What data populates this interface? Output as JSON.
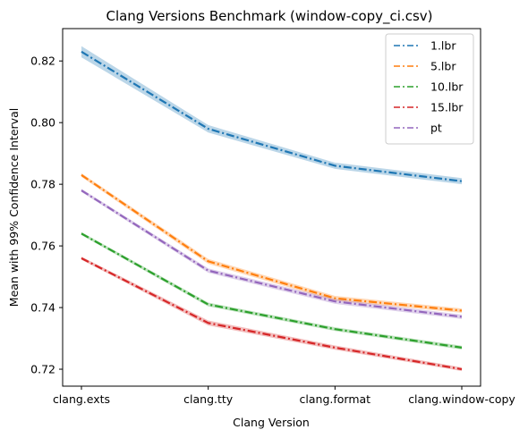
{
  "chart_data": {
    "type": "line",
    "title": "Clang Versions Benchmark (window-copy_ci.csv)",
    "xlabel": "Clang Version",
    "ylabel": "Mean with 99% Confidence Interval",
    "categories": [
      "clang.exts",
      "clang.tty",
      "clang.format",
      "clang.window-copy"
    ],
    "ylim": [
      0.7145,
      0.8305
    ],
    "yticks": [
      0.72,
      0.74,
      0.76,
      0.78,
      0.8,
      0.82
    ],
    "ytick_labels": [
      "0.72",
      "0.74",
      "0.76",
      "0.78",
      "0.80",
      "0.82"
    ],
    "grid": false,
    "legend_position": "top-right",
    "line_style": "dash-dot",
    "series": [
      {
        "name": "1.lbr",
        "color": "#1f77b4",
        "values": [
          0.823,
          0.798,
          0.786,
          0.781
        ],
        "ci": [
          0.0018,
          0.0012,
          0.001,
          0.001
        ]
      },
      {
        "name": "5.lbr",
        "color": "#ff7f0e",
        "values": [
          0.783,
          0.755,
          0.743,
          0.739
        ],
        "ci": [
          0.0006,
          0.0008,
          0.0008,
          0.0007
        ]
      },
      {
        "name": "10.lbr",
        "color": "#2ca02c",
        "values": [
          0.764,
          0.741,
          0.733,
          0.727
        ],
        "ci": [
          0.0005,
          0.0006,
          0.0006,
          0.0006
        ]
      },
      {
        "name": "15.lbr",
        "color": "#d62728",
        "values": [
          0.756,
          0.735,
          0.727,
          0.72
        ],
        "ci": [
          0.0005,
          0.0008,
          0.0007,
          0.0006
        ]
      },
      {
        "name": "pt",
        "color": "#9467bd",
        "values": [
          0.778,
          0.752,
          0.742,
          0.737
        ],
        "ci": [
          0.0005,
          0.0007,
          0.0008,
          0.0007
        ]
      }
    ]
  }
}
